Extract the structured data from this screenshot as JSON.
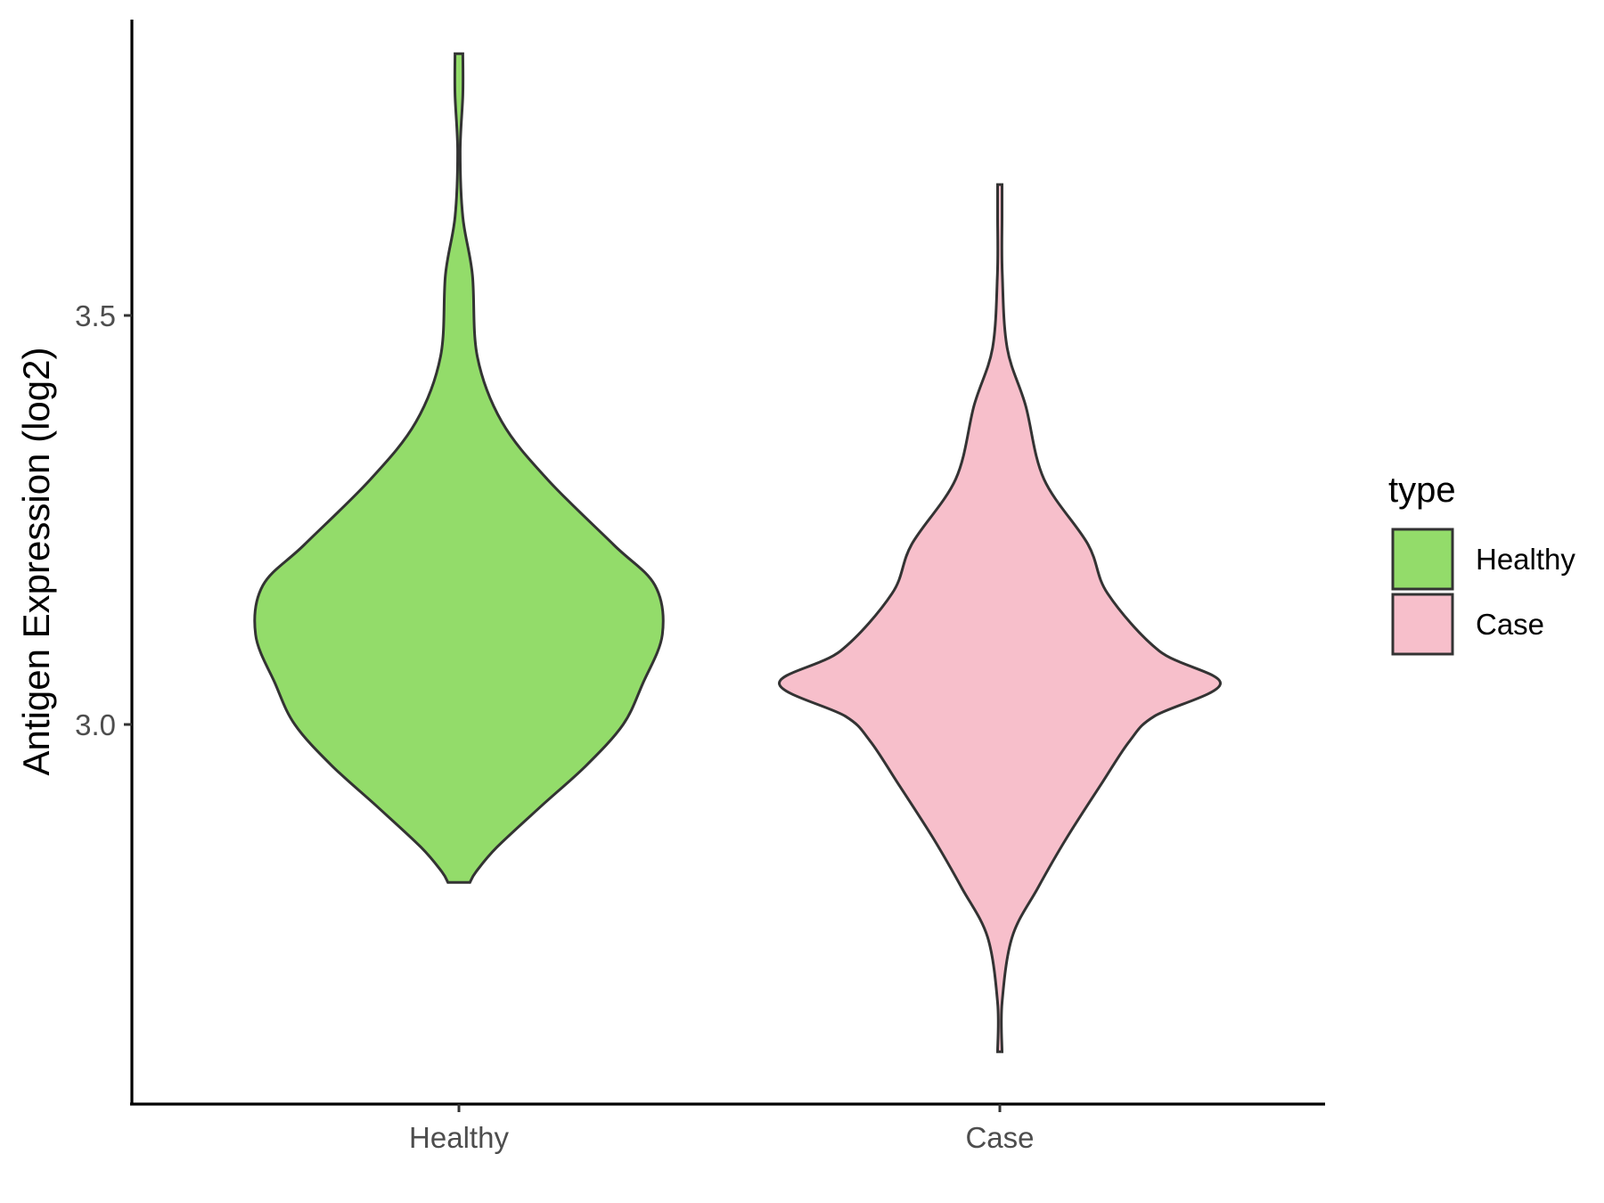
{
  "chart_data": {
    "type": "violin",
    "ylabel": "Antigen Expression (log2)",
    "xlabel": "",
    "categories": [
      "Healthy",
      "Case"
    ],
    "yticks": [
      3.0,
      3.5
    ],
    "ylim": [
      2.54,
      3.86
    ],
    "series": [
      {
        "name": "Healthy",
        "color": "#93DC6A",
        "density_profile": [
          [
            2.807,
            0.045
          ],
          [
            2.82,
            0.07
          ],
          [
            2.85,
            0.155
          ],
          [
            2.9,
            0.335
          ],
          [
            2.95,
            0.52
          ],
          [
            3.0,
            0.67
          ],
          [
            3.05,
            0.75
          ],
          [
            3.11,
            0.83
          ],
          [
            3.17,
            0.8
          ],
          [
            3.22,
            0.63
          ],
          [
            3.3,
            0.36
          ],
          [
            3.37,
            0.175
          ],
          [
            3.45,
            0.075
          ],
          [
            3.55,
            0.055
          ],
          [
            3.62,
            0.016
          ],
          [
            3.7,
            0.005
          ],
          [
            3.77,
            0.016
          ],
          [
            3.82,
            0.016
          ]
        ]
      },
      {
        "name": "Case",
        "color": "#F7BFCB",
        "density_profile": [
          [
            2.6,
            0.009
          ],
          [
            2.66,
            0.009
          ],
          [
            2.74,
            0.05
          ],
          [
            2.8,
            0.155
          ],
          [
            2.86,
            0.27
          ],
          [
            2.93,
            0.42
          ],
          [
            2.98,
            0.53
          ],
          [
            3.01,
            0.63
          ],
          [
            3.05,
            0.9
          ],
          [
            3.09,
            0.65
          ],
          [
            3.16,
            0.44
          ],
          [
            3.22,
            0.36
          ],
          [
            3.3,
            0.18
          ],
          [
            3.39,
            0.105
          ],
          [
            3.46,
            0.03
          ],
          [
            3.55,
            0.01
          ],
          [
            3.62,
            0.009
          ],
          [
            3.66,
            0.009
          ]
        ]
      }
    ],
    "legend": {
      "title": "type",
      "position": "right",
      "items": [
        "Healthy",
        "Case"
      ]
    }
  }
}
